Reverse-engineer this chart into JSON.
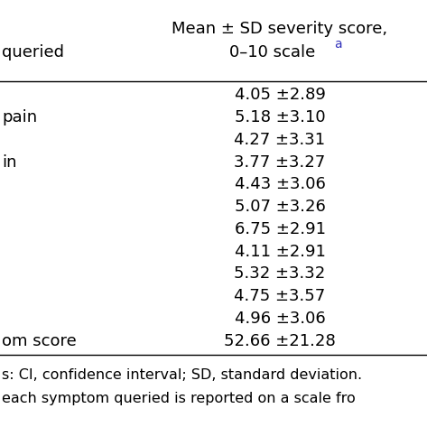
{
  "col1_header": "queried",
  "col2_header_line1": "Mean ± SD severity score,",
  "col2_header_line2": "0–10 scale",
  "col2_superscript": "a",
  "rows": [
    {
      "left": "",
      "right": "4.05 ±2.89"
    },
    {
      "left": "pain",
      "right": "5.18 ±3.10"
    },
    {
      "left": "",
      "right": "4.27 ±3.31"
    },
    {
      "left": "in",
      "right": "3.77 ±3.27"
    },
    {
      "left": "",
      "right": "4.43 ±3.06"
    },
    {
      "left": "",
      "right": "5.07 ±3.26"
    },
    {
      "left": "",
      "right": "6.75 ±2.91"
    },
    {
      "left": "",
      "right": "4.11 ±2.91"
    },
    {
      "left": "",
      "right": "5.32 ±3.32"
    },
    {
      "left": "",
      "right": "4.75 ±3.57"
    },
    {
      "left": "",
      "right": "4.96 ±3.06"
    },
    {
      "left": "om score",
      "right": "52.66 ±21.28"
    }
  ],
  "footnote_line1": "s: CI, confidence interval; SD, standard deviation.",
  "footnote_line2": "each symptom queried is reported on a scale fro",
  "bg_color": "#ffffff",
  "text_color": "#000000",
  "header_divider_color": "#000000",
  "footer_divider_color": "#000000",
  "superscript_color": "#3333bb",
  "font_size": 13,
  "header_font_size": 13,
  "footnote_font_size": 11.5
}
